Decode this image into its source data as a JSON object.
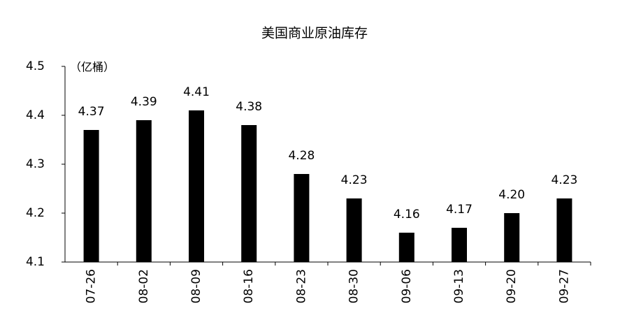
{
  "chart_data": {
    "type": "bar",
    "title": "美国商业原油库存",
    "unit_label": "（亿桶）",
    "categories": [
      "07-26",
      "08-02",
      "08-09",
      "08-16",
      "08-23",
      "08-30",
      "09-06",
      "09-13",
      "09-20",
      "09-27"
    ],
    "values": [
      4.37,
      4.39,
      4.41,
      4.38,
      4.28,
      4.23,
      4.16,
      4.17,
      4.2,
      4.23
    ],
    "value_labels": [
      "4.37",
      "4.39",
      "4.41",
      "4.38",
      "4.28",
      "4.23",
      "4.16",
      "4.17",
      "4.20",
      "4.23"
    ],
    "color": "#000000",
    "ylim": [
      4.1,
      4.5
    ],
    "yticks": [
      4.1,
      4.2,
      4.3,
      4.4,
      4.5
    ],
    "grid": false
  }
}
